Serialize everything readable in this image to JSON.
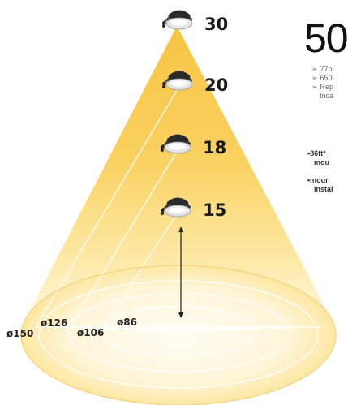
{
  "headline": "50",
  "specs": [
    {
      "line1": "77p",
      "line2": ""
    },
    {
      "line1": "650",
      "line2": ""
    },
    {
      "line1": "Rep",
      "line2": "Inca"
    }
  ],
  "notes": [
    {
      "line1": "•86ft*",
      "line2": "mou"
    },
    {
      "line1": "•mour",
      "line2": "instal"
    }
  ],
  "mounting_heights": [
    "30",
    "20",
    "18",
    "15"
  ],
  "diameters": [
    "ø150",
    "ø126",
    "ø106",
    "ø86"
  ],
  "colors": {
    "beam_light": "#fff6d6",
    "beam_mid": "#fcd96a",
    "beam_strong": "#f6c13a",
    "ring_line": "#ffffff",
    "fixture_housing": "#2b2b2b",
    "fixture_lens": "#f4f4f4"
  },
  "icons": {
    "fixture": "dusk-to-dawn-barn-light-icon",
    "arrow": "double-arrow-icon",
    "bullet": "arrow-bullet-icon"
  }
}
